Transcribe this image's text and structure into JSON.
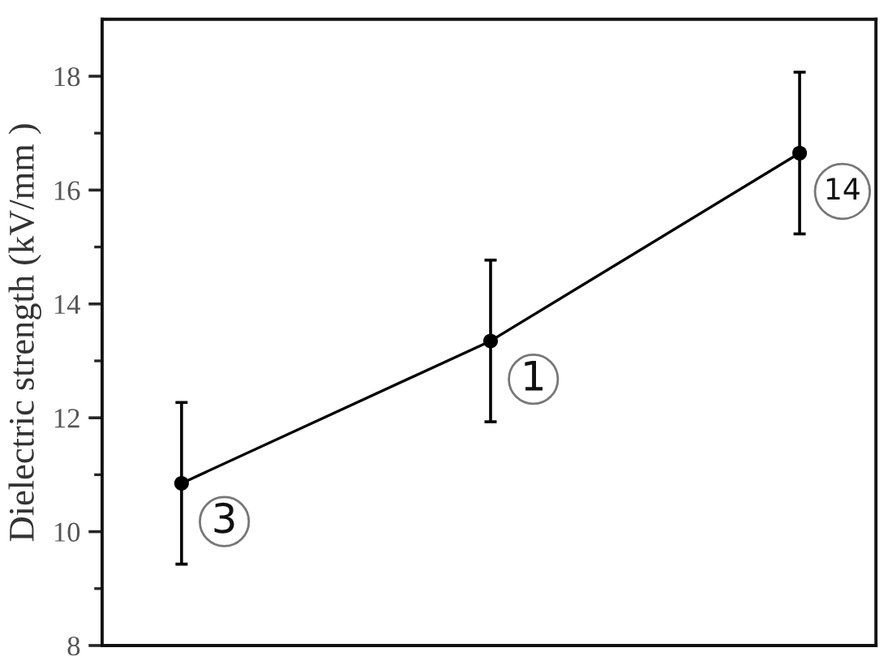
{
  "chart_data": {
    "type": "line",
    "ylabel": "Dielectric strength (kV/mm )",
    "categories": [
      null,
      null,
      null
    ],
    "series": [
      {
        "color": "#000000",
        "values": [
          10.85,
          13.35,
          16.65
        ],
        "errors": [
          1.42,
          1.42,
          1.42
        ]
      }
    ],
    "marker": "circle",
    "line_style": "solid",
    "ylim": [
      8,
      19
    ],
    "yticks": [
      8,
      {
        "value": 9,
        "label": null
      },
      10,
      {
        "value": 11,
        "label": null
      },
      12,
      {
        "value": 13,
        "label": null
      },
      14,
      {
        "value": 15,
        "label": null
      },
      16,
      {
        "value": 17,
        "label": null
      },
      18
    ],
    "tick_labels": "y",
    "annotations": [
      "3",
      "1",
      "14"
    ]
  }
}
